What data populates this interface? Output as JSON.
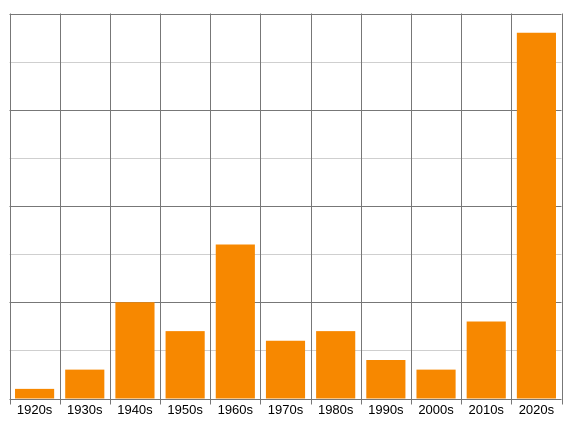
{
  "chart_data": {
    "type": "bar",
    "categories": [
      "1920s",
      "1930s",
      "1940s",
      "1950s",
      "1960s",
      "1970s",
      "1980s",
      "1990s",
      "2000s",
      "2010s",
      "2020s"
    ],
    "values": [
      1,
      3,
      10,
      7,
      16,
      6,
      7,
      4,
      3,
      8,
      38
    ],
    "color": "#f78800",
    "ylim": [
      0,
      40
    ],
    "major_yticks": [
      0,
      10,
      20,
      30,
      40
    ],
    "minor_yticks": [
      5,
      15,
      25,
      35
    ],
    "grid": true
  }
}
